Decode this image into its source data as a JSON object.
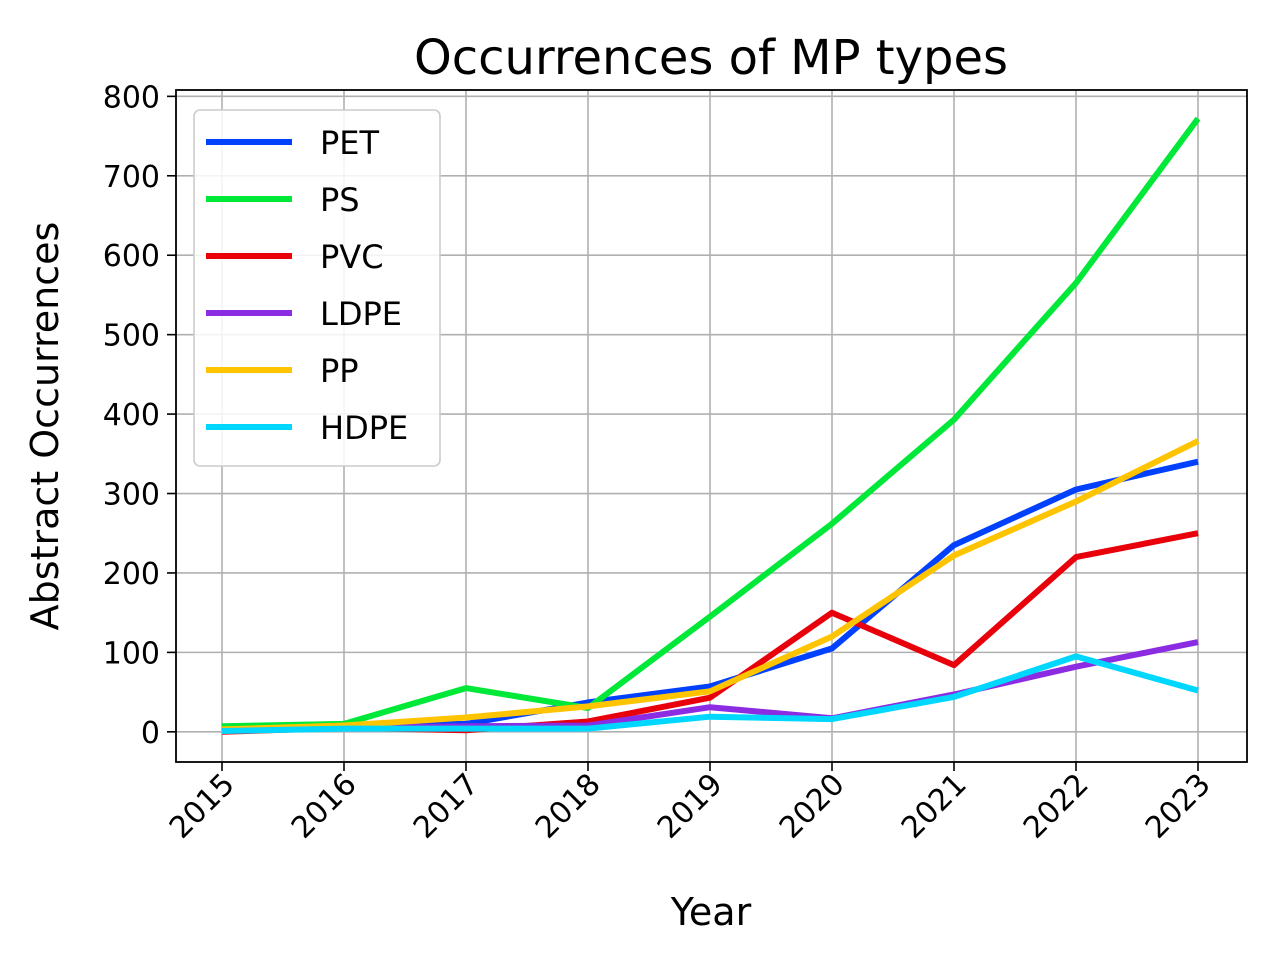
{
  "chart_data": {
    "type": "line",
    "title": "Occurrences of MP types",
    "xlabel": "Year",
    "ylabel": "Abstract Occurrences",
    "x": [
      "2015",
      "2016",
      "2017",
      "2018",
      "2019",
      "2020",
      "2021",
      "2022",
      "2023"
    ],
    "ylim": [
      -38,
      808
    ],
    "yticks": [
      0,
      100,
      200,
      300,
      400,
      500,
      600,
      700,
      800
    ],
    "grid": true,
    "legend_position": "upper-left",
    "series": [
      {
        "name": "PET",
        "color": "#0040ff",
        "values": [
          2,
          8,
          10,
          37,
          57,
          105,
          235,
          305,
          340
        ]
      },
      {
        "name": "PS",
        "color": "#00e838",
        "values": [
          7,
          10,
          55,
          30,
          145,
          262,
          393,
          565,
          772
        ]
      },
      {
        "name": "PVC",
        "color": "#e8000b",
        "values": [
          0,
          5,
          2,
          13,
          43,
          150,
          84,
          220,
          250
        ]
      },
      {
        "name": "LDPE",
        "color": "#8b2be2",
        "values": [
          2,
          5,
          7,
          8,
          31,
          17,
          47,
          82,
          113
        ]
      },
      {
        "name": "PP",
        "color": "#ffc400",
        "values": [
          3,
          8,
          18,
          32,
          51,
          120,
          222,
          290,
          366
        ]
      },
      {
        "name": "HDPE",
        "color": "#00d7ff",
        "values": [
          1,
          4,
          4,
          4,
          19,
          16,
          44,
          95,
          52
        ]
      }
    ]
  }
}
